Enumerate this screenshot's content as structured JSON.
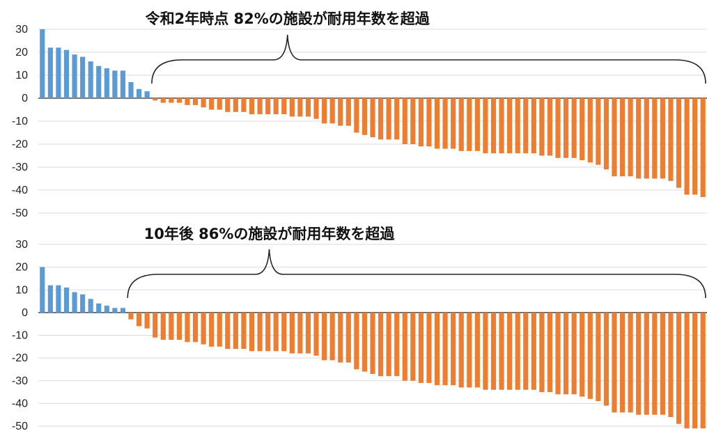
{
  "chart_data": [
    {
      "type": "bar",
      "title": "",
      "xlabel": "",
      "ylabel": "",
      "ylim": [
        -50,
        30
      ],
      "yticks": [
        30,
        20,
        10,
        0,
        -10,
        -20,
        -30,
        -40,
        -50
      ],
      "grid": true,
      "legend": "none",
      "annotation": "令和2年時点 82%の施設が耐用年数を超過",
      "colors": {
        "positive": "#5B9BD5",
        "negative": "#ED7D31"
      },
      "values": [
        30,
        22,
        22,
        21,
        19,
        18,
        16,
        14,
        13,
        12,
        12,
        7,
        4,
        3,
        -1,
        -2,
        -2,
        -2,
        -3,
        -3,
        -4,
        -5,
        -5,
        -6,
        -6,
        -6,
        -7,
        -7,
        -7,
        -7,
        -7,
        -8,
        -8,
        -8,
        -9,
        -11,
        -11,
        -12,
        -12,
        -15,
        -16,
        -17,
        -18,
        -18,
        -18,
        -20,
        -20,
        -21,
        -21,
        -22,
        -22,
        -22,
        -23,
        -23,
        -23,
        -24,
        -24,
        -24,
        -24,
        -24,
        -24,
        -24,
        -25,
        -25,
        -26,
        -26,
        -26,
        -27,
        -28,
        -29,
        -31,
        -34,
        -34,
        -34,
        -35,
        -35,
        -35,
        -35,
        -36,
        -39,
        -42,
        -42,
        -43
      ]
    },
    {
      "type": "bar",
      "title": "",
      "xlabel": "",
      "ylabel": "",
      "ylim": [
        -50,
        30
      ],
      "yticks": [
        30,
        20,
        10,
        0,
        -10,
        -20,
        -30,
        -40,
        -50
      ],
      "grid": true,
      "legend": "none",
      "annotation": "10年後 86%の施設が耐用年数を超過",
      "colors": {
        "positive": "#5B9BD5",
        "negative": "#ED7D31"
      },
      "values": [
        20,
        12,
        12,
        11,
        9,
        8,
        6,
        4,
        3,
        2,
        2,
        -3,
        -6,
        -7,
        -11,
        -12,
        -12,
        -12,
        -13,
        -13,
        -14,
        -15,
        -15,
        -16,
        -16,
        -16,
        -17,
        -17,
        -17,
        -17,
        -17,
        -18,
        -18,
        -18,
        -19,
        -21,
        -21,
        -22,
        -22,
        -25,
        -26,
        -27,
        -28,
        -28,
        -28,
        -30,
        -30,
        -31,
        -31,
        -32,
        -32,
        -32,
        -33,
        -33,
        -33,
        -34,
        -34,
        -34,
        -34,
        -34,
        -34,
        -34,
        -35,
        -35,
        -36,
        -36,
        -36,
        -37,
        -38,
        -39,
        -41,
        -44,
        -44,
        -44,
        -45,
        -45,
        -45,
        -45,
        -46,
        -49,
        -51,
        -51,
        -51
      ]
    }
  ]
}
